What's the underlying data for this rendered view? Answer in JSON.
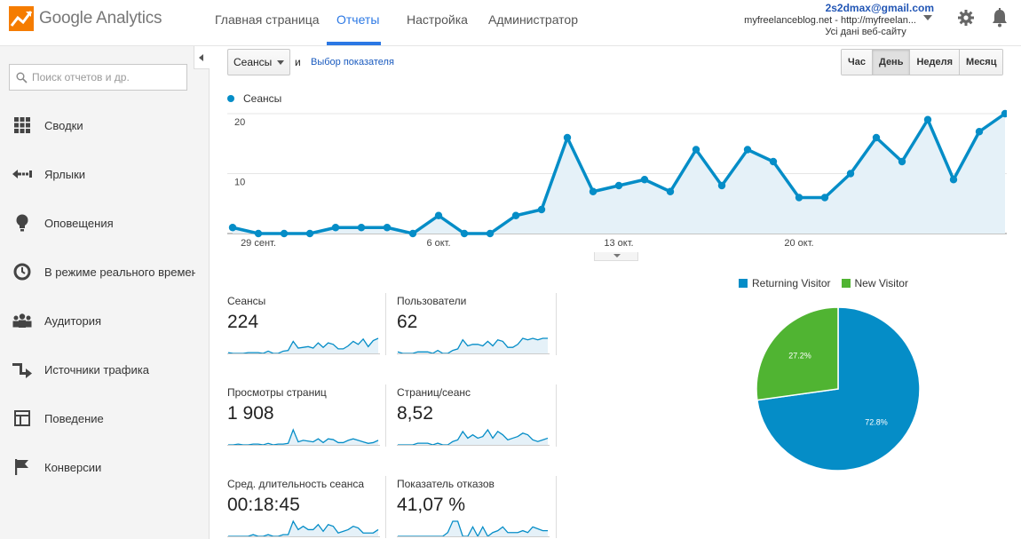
{
  "header": {
    "logo_text": "Google Analytics",
    "nav": [
      {
        "label": "Главная страница"
      },
      {
        "label": "Отчеты"
      },
      {
        "label": "Настройка"
      },
      {
        "label": "Администратор"
      }
    ],
    "account": {
      "email": "2s2dmax@gmail.com",
      "site": "myfreelanceblog.net - http://myfreelan...",
      "view": "Усі дані веб-сайту"
    }
  },
  "sidebar": {
    "search_placeholder": "Поиск отчетов и др.",
    "items": [
      {
        "label": "Сводки",
        "icon": "grid-icon"
      },
      {
        "label": "Ярлыки",
        "icon": "shortcut-arrow-icon"
      },
      {
        "label": "Оповещения",
        "icon": "lightbulb-icon"
      },
      {
        "label": "В режиме реального времени",
        "icon": "clock-icon"
      },
      {
        "label": "Аудитория",
        "icon": "people-icon"
      },
      {
        "label": "Источники трафика",
        "icon": "traffic-arrows-icon"
      },
      {
        "label": "Поведение",
        "icon": "layout-icon"
      },
      {
        "label": "Конверсии",
        "icon": "flag-icon"
      }
    ]
  },
  "toolbar": {
    "metric_value": "Сеансы",
    "and_label": "и",
    "choose_metric": "Выбор показателя",
    "periods": [
      {
        "label": "Час",
        "active": false
      },
      {
        "label": "День",
        "active": true
      },
      {
        "label": "Неделя",
        "active": false
      },
      {
        "label": "Месяц",
        "active": false
      }
    ]
  },
  "colors": {
    "sessions": "#058dc7",
    "returning": "#058dc7",
    "new": "#50b432",
    "accent": "#2b78e4"
  },
  "chart_data": [
    {
      "type": "area",
      "series": [
        {
          "name": "Сеансы",
          "values": [
            1,
            0,
            0,
            0,
            1,
            1,
            1,
            0,
            3,
            0,
            0,
            3,
            4,
            16,
            7,
            8,
            9,
            7,
            14,
            8,
            14,
            12,
            6,
            6,
            10,
            16,
            12,
            19,
            9,
            17,
            20
          ]
        }
      ],
      "y_ticks": [
        "10",
        "20"
      ],
      "ylim": [
        0,
        20
      ],
      "x_tick_labels": [
        {
          "index": 1,
          "label": "29 сент."
        },
        {
          "index": 8,
          "label": "6 окт."
        },
        {
          "index": 15,
          "label": "13 окт."
        },
        {
          "index": 22,
          "label": "20 окт."
        }
      ],
      "grid": true
    },
    {
      "type": "pie",
      "slices": [
        {
          "name": "Returning Visitor",
          "value": 72.8,
          "label": "72.8%"
        },
        {
          "name": "New Visitor",
          "value": 27.2,
          "label": "27.2%"
        }
      ],
      "legend": "top"
    }
  ],
  "tiles": [
    {
      "label": "Сеансы",
      "value": "224",
      "spark": [
        1,
        0,
        0,
        0,
        1,
        1,
        1,
        0,
        3,
        0,
        0,
        3,
        4,
        16,
        7,
        8,
        9,
        7,
        14,
        8,
        14,
        12,
        6,
        6,
        10,
        16,
        12,
        19,
        9,
        17,
        20
      ]
    },
    {
      "label": "Пользователи",
      "value": "62",
      "spark": [
        1,
        0,
        0,
        0,
        1,
        1,
        1,
        0,
        2,
        0,
        0,
        2,
        3,
        9,
        5,
        6,
        6,
        5,
        8,
        5,
        9,
        8,
        4,
        4,
        6,
        10,
        9,
        10,
        9,
        10,
        10
      ]
    },
    {
      "label": "Просмотры страниц",
      "value": "1 908",
      "spark": [
        0,
        0,
        1,
        0,
        0,
        1,
        1,
        0,
        2,
        0,
        1,
        1,
        2,
        20,
        4,
        6,
        5,
        4,
        8,
        3,
        8,
        7,
        3,
        3,
        6,
        8,
        6,
        4,
        2,
        3,
        6
      ]
    },
    {
      "label": "Страниц/сеанс",
      "value": "8,52",
      "spark": [
        0,
        0,
        0,
        0,
        1,
        1,
        1,
        0,
        1,
        0,
        0,
        2,
        3,
        8,
        4,
        6,
        4,
        5,
        9,
        4,
        8,
        6,
        3,
        4,
        5,
        7,
        6,
        3,
        2,
        3,
        4
      ]
    },
    {
      "label": "Сред. длительность сеанса",
      "value": "00:18:45",
      "spark": [
        0,
        0,
        0,
        0,
        0,
        1,
        0,
        0,
        1,
        0,
        0,
        1,
        1,
        9,
        4,
        6,
        4,
        4,
        7,
        3,
        7,
        6,
        2,
        3,
        4,
        6,
        5,
        2,
        2,
        2,
        4
      ]
    },
    {
      "label": "Показатель отказов",
      "value": "41,07 %",
      "spark": [
        0,
        0,
        0,
        0,
        0,
        0,
        0,
        0,
        0,
        0,
        2,
        8,
        8,
        0,
        0,
        5,
        0,
        5,
        0,
        2,
        3,
        5,
        2,
        2,
        2,
        3,
        2,
        5,
        4,
        3,
        3
      ]
    }
  ]
}
